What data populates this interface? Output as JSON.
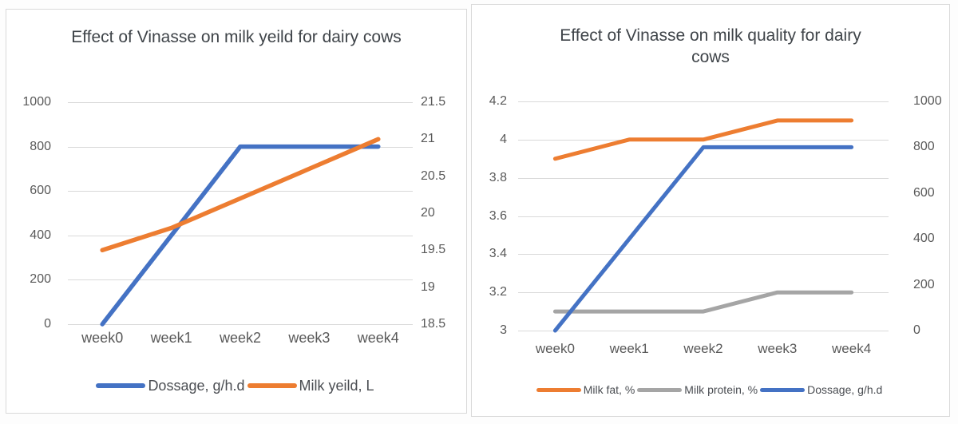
{
  "page": {
    "background": "#ffffff",
    "panel_border": "#d9d9d9",
    "gridline_color": "#d9d9d9",
    "axis_text_color": "#595959",
    "title_text_color": "#3f4449"
  },
  "chart_data": [
    {
      "type": "line",
      "title": "Effect of Vinasse on milk yeild for dairy cows",
      "categories": [
        "week0",
        "week1",
        "week2",
        "week3",
        "week4"
      ],
      "left_axis": {
        "min": 0,
        "max": 1000,
        "ticks": [
          "1000",
          "800",
          "600",
          "400",
          "200",
          "0"
        ]
      },
      "right_axis": {
        "min": 18.5,
        "max": 21.5,
        "ticks": [
          "21.5",
          "21",
          "20.5",
          "20",
          "19.5",
          "19",
          "18.5"
        ]
      },
      "grid": true,
      "legend_position": "bottom",
      "series": [
        {
          "name": "Dossage, g/h.d",
          "axis": "left",
          "color": "#4472C4",
          "values": [
            0,
            400,
            800,
            800,
            800
          ]
        },
        {
          "name": "Milk yeild, L",
          "axis": "right",
          "color": "#ED7D31",
          "values": [
            19.5,
            19.8,
            20.2,
            20.6,
            21
          ]
        }
      ]
    },
    {
      "type": "line",
      "title": "Effect of Vinasse on milk quality for dairy cows",
      "categories": [
        "week0",
        "week1",
        "week2",
        "week3",
        "week4"
      ],
      "left_axis": {
        "min": 3,
        "max": 4.2,
        "ticks": [
          "4.2",
          "4",
          "3.8",
          "3.6",
          "3.4",
          "3.2",
          "3"
        ]
      },
      "right_axis": {
        "min": 0,
        "max": 1000,
        "ticks": [
          "1000",
          "800",
          "600",
          "400",
          "200",
          "0"
        ]
      },
      "grid": true,
      "legend_position": "bottom",
      "series": [
        {
          "name": "Milk fat, %",
          "axis": "left",
          "color": "#ED7D31",
          "values": [
            3.9,
            4,
            4,
            4.1,
            4.1
          ]
        },
        {
          "name": "Milk protein, %",
          "axis": "left",
          "color": "#A5A5A5",
          "values": [
            3.1,
            3.1,
            3.1,
            3.2,
            3.2
          ]
        },
        {
          "name": "Dossage, g/h.d",
          "axis": "right",
          "color": "#4472C4",
          "values": [
            0,
            400,
            800,
            800,
            800
          ]
        }
      ]
    }
  ]
}
